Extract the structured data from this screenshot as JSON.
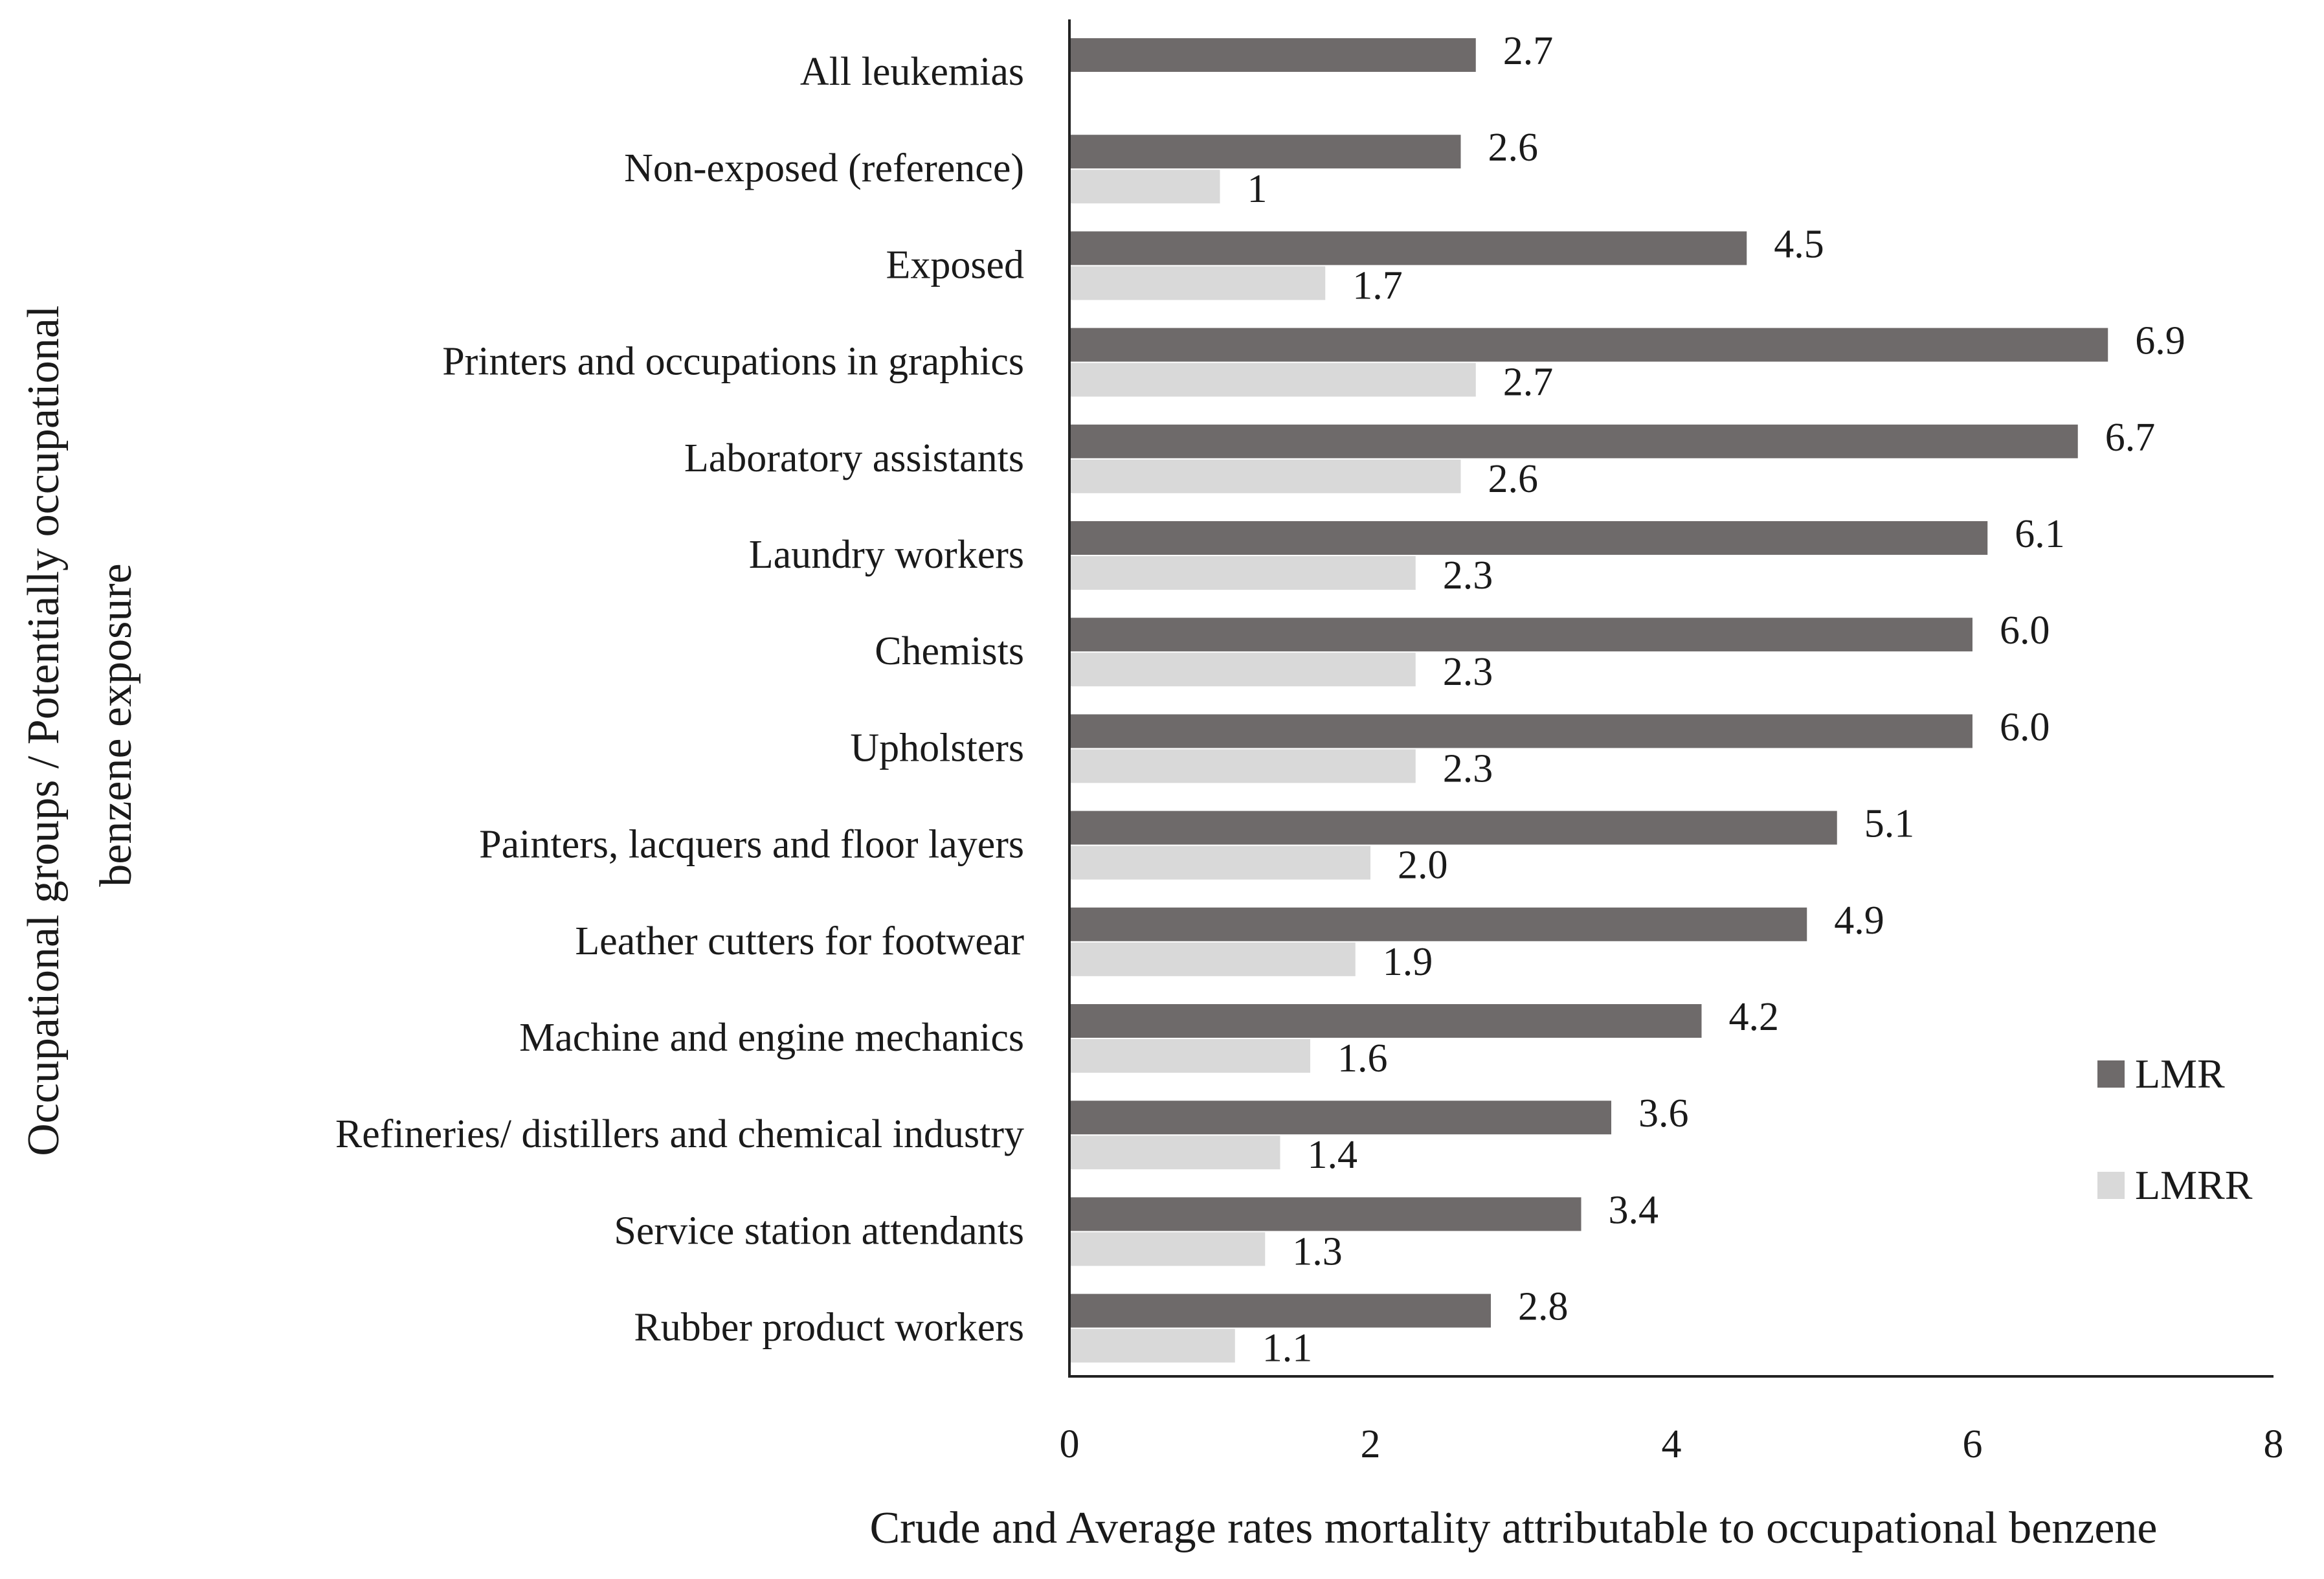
{
  "chart_data": {
    "type": "bar",
    "orientation": "horizontal",
    "categories": [
      "All leukemias",
      "Non-exposed (reference)",
      "Exposed",
      "Printers and occupations in graphics",
      "Laboratory assistants",
      "Laundry workers",
      "Chemists",
      "Upholsters",
      "Painters, lacquers and floor layers",
      "Leather cutters for footwear",
      "Machine and engine mechanics",
      "Refineries/ distillers and chemical industry",
      "Service station attendants",
      "Rubber product workers"
    ],
    "series": [
      {
        "name": "LMR",
        "color": "#6e6a6a",
        "values": [
          2.7,
          2.6,
          4.5,
          6.9,
          6.7,
          6.1,
          6.0,
          6.0,
          5.1,
          4.9,
          4.2,
          3.6,
          3.4,
          2.8
        ],
        "labels": [
          "2.7",
          "2.6",
          "4.5",
          "6.9",
          "6.7",
          "6.1",
          "6.0",
          "6.0",
          "5.1",
          "4.9",
          "4.2",
          "3.6",
          "3.4",
          "2.8"
        ]
      },
      {
        "name": "LMRR",
        "color": "#d9d9d9",
        "values": [
          null,
          1,
          1.7,
          2.7,
          2.6,
          2.3,
          2.3,
          2.3,
          2.0,
          1.9,
          1.6,
          1.4,
          1.3,
          1.1
        ],
        "labels": [
          null,
          "1",
          "1.7",
          "2.7",
          "2.6",
          "2.3",
          "2.3",
          "2.3",
          "2.0",
          "1.9",
          "1.6",
          "1.4",
          "1.3",
          "1.1"
        ]
      }
    ],
    "xlim": [
      0,
      8
    ],
    "xticks": [
      "0",
      "2",
      "4",
      "6",
      "8"
    ],
    "xlabel": "Crude and Average rates mortality attributable to occupational benzene",
    "ylabel_lines": [
      "Occupational groups / Potentially occupational",
      "benzene exposure"
    ],
    "legend_position": "right"
  }
}
